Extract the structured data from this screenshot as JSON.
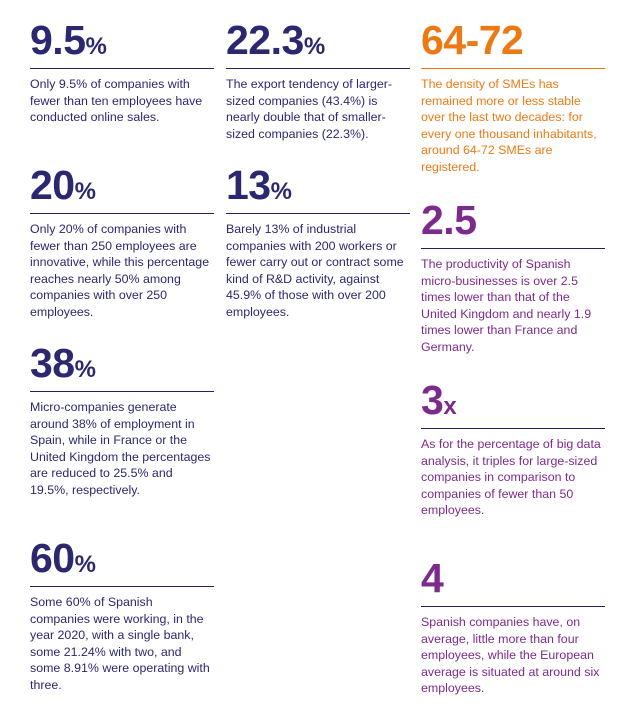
{
  "stats": [
    {
      "value": "9.5",
      "unit": "%",
      "text": "Only 9.5% of companies with fewer than ten employees have conducted online sales."
    },
    {
      "value": "22.3",
      "unit": "%",
      "text": "The export tendency of larger-sized companies (43.4%) is nearly double that of smaller-sized companies (22.3%)."
    },
    {
      "value": "64-72",
      "unit": "",
      "text": "The density of SMEs has remained more or less stable over the last two decades: for every one thousand inhabitants, around 64-72 SMEs are registered."
    },
    {
      "value": "20",
      "unit": "%",
      "text": "Only 20% of companies with fewer than 250 employees are innovative, while this percentage reaches nearly 50% among companies with over 250 employees."
    },
    {
      "value": "13",
      "unit": "%",
      "text": "Barely 13% of industrial companies with 200 workers or fewer carry out or contract some kind of R&D activity, against 45.9% of those with over 200 employees."
    },
    {
      "value": "2.5",
      "unit": "",
      "text": "The productivity of Spanish micro-businesses is over 2.5 times lower than that of the United Kingdom and nearly 1.9 times lower than France and Germany."
    },
    {
      "value": "38",
      "unit": "%",
      "text": "Micro-companies generate around 38% of employment in Spain, while in France or the United Kingdom the percentages are reduced to 25.5% and 19.5%, respectively."
    },
    {
      "value": "3",
      "unit": "x",
      "text": "As for the percentage of big data analysis, it triples for large-sized companies in comparison to companies of fewer than 50 employees."
    },
    {
      "value": "60",
      "unit": "%",
      "text": "Some 60% of Spanish companies were working, in the year 2020, with a single bank, some 21.24% with two, and some 8.91% were operating with three."
    },
    {
      "value": "4",
      "unit": "",
      "text": "Spanish companies have, on average, little more than four employees, while the European average is situated at around six employees."
    }
  ],
  "colors": {
    "navy": "#2b2870",
    "orange": "#ec7a14",
    "purple": "#7d2a8d",
    "rule": "#24215e"
  }
}
